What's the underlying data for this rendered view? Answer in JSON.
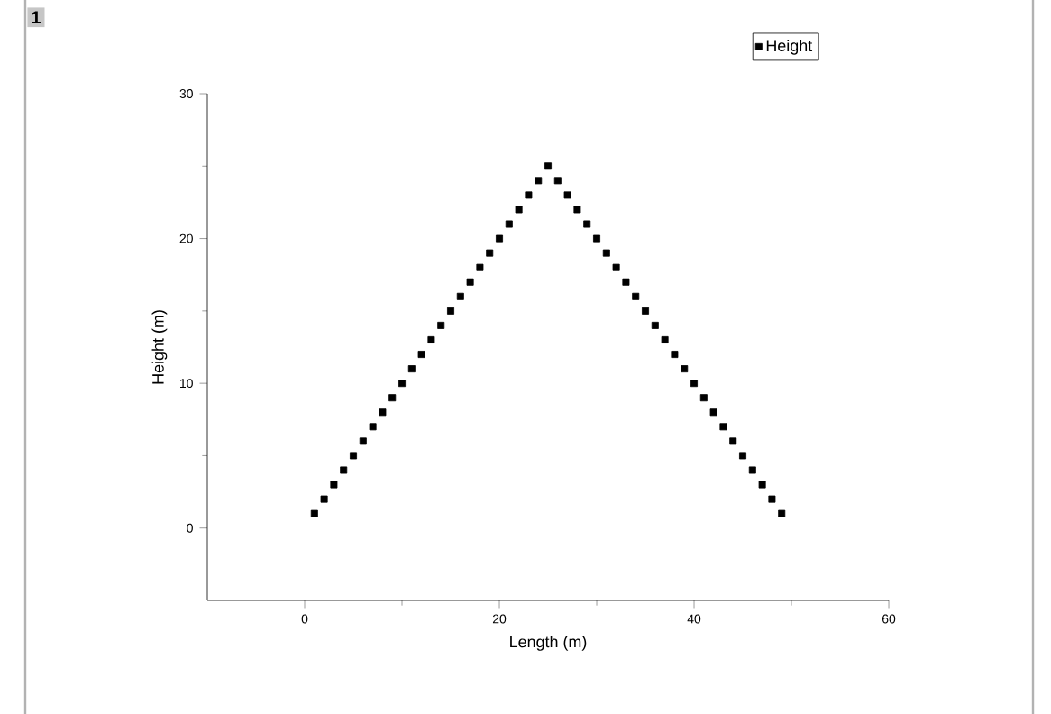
{
  "chart_data": {
    "type": "scatter",
    "xlabel": "Length (m)",
    "ylabel": "Height (m)",
    "annotations": [
      "1"
    ],
    "x": [
      1,
      2,
      3,
      4,
      5,
      6,
      7,
      8,
      9,
      10,
      11,
      12,
      13,
      14,
      15,
      16,
      17,
      18,
      19,
      20,
      21,
      22,
      23,
      24,
      25,
      26,
      27,
      28,
      29,
      30,
      31,
      32,
      33,
      34,
      35,
      36,
      37,
      38,
      39,
      40,
      41,
      42,
      43,
      44,
      45,
      46,
      47,
      48,
      49
    ],
    "series": [
      {
        "name": "Height",
        "color": "#000000",
        "values": [
          1,
          2,
          3,
          4,
          5,
          6,
          7,
          8,
          9,
          10,
          11,
          12,
          13,
          14,
          15,
          16,
          17,
          18,
          19,
          20,
          21,
          22,
          23,
          24,
          25,
          24,
          23,
          22,
          21,
          20,
          19,
          18,
          17,
          16,
          15,
          14,
          13,
          12,
          11,
          10,
          9,
          8,
          7,
          6,
          5,
          4,
          3,
          2,
          1
        ]
      }
    ],
    "xlim": [
      -10,
      60
    ],
    "xticks": [
      0,
      20,
      40,
      60
    ],
    "ylim": [
      -5,
      30
    ],
    "yticks": [
      0,
      10,
      20,
      30
    ],
    "marker": "square",
    "legend": "top right",
    "grid": false
  }
}
